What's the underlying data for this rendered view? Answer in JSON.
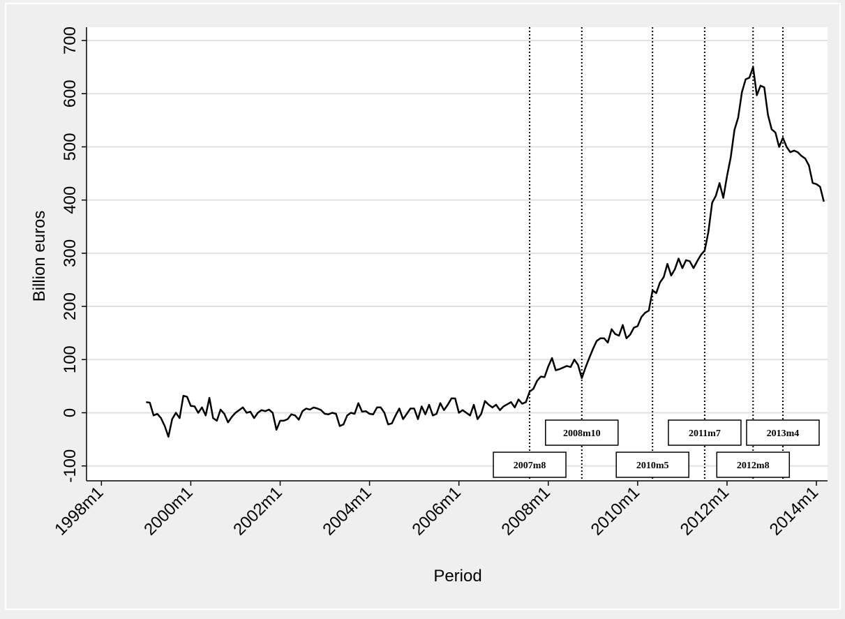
{
  "chart_data": {
    "type": "line",
    "xlabel": "Period",
    "ylabel": "Billion euros",
    "x_ticks": [
      "1998m1",
      "2000m1",
      "2002m1",
      "2004m1",
      "2006m1",
      "2008m1",
      "2010m1",
      "2012m1",
      "2014m1"
    ],
    "y_ticks": [
      "-100",
      "0",
      "100",
      "200",
      "300",
      "400",
      "500",
      "600",
      "700"
    ],
    "xlim": [
      "1997m9",
      "2014m4"
    ],
    "ylim": [
      -128,
      725
    ],
    "grid": "horizontal",
    "colors": {
      "line": "#000000",
      "grid": "#e1e1e1",
      "plot_bg": "#ffffff",
      "page_bg": "#efefef"
    },
    "series": [
      {
        "x": [
          "1999m1",
          "1999m2",
          "1999m3",
          "1999m4",
          "1999m5",
          "1999m6",
          "1999m7",
          "1999m8",
          "1999m9",
          "1999m10",
          "1999m11",
          "1999m12",
          "2000m1",
          "2000m2",
          "2000m3",
          "2000m4",
          "2000m5",
          "2000m6",
          "2000m7",
          "2000m8",
          "2000m9",
          "2000m10",
          "2000m11",
          "2000m12",
          "2001m1",
          "2001m2",
          "2001m3",
          "2001m4",
          "2001m5",
          "2001m6",
          "2001m7",
          "2001m8",
          "2001m9",
          "2001m10",
          "2001m11",
          "2001m12",
          "2002m1",
          "2002m2",
          "2002m3",
          "2002m4",
          "2002m5",
          "2002m6",
          "2002m7",
          "2002m8",
          "2002m9",
          "2002m10",
          "2002m11",
          "2002m12",
          "2003m1",
          "2003m2",
          "2003m3",
          "2003m4",
          "2003m5",
          "2003m6",
          "2003m7",
          "2003m8",
          "2003m9",
          "2003m10",
          "2003m11",
          "2003m12",
          "2004m1",
          "2004m2",
          "2004m3",
          "2004m4",
          "2004m5",
          "2004m6",
          "2004m7",
          "2004m8",
          "2004m9",
          "2004m10",
          "2004m11",
          "2004m12",
          "2005m1",
          "2005m2",
          "2005m3",
          "2005m4",
          "2005m5",
          "2005m6",
          "2005m7",
          "2005m8",
          "2005m9",
          "2005m10",
          "2005m11",
          "2005m12",
          "2006m1",
          "2006m2",
          "2006m3",
          "2006m4",
          "2006m5",
          "2006m6",
          "2006m7",
          "2006m8",
          "2006m9",
          "2006m10",
          "2006m11",
          "2006m12",
          "2007m1",
          "2007m2",
          "2007m3",
          "2007m4",
          "2007m5",
          "2007m6",
          "2007m7",
          "2007m8",
          "2007m9",
          "2007m10",
          "2007m11",
          "2007m12",
          "2008m1",
          "2008m2",
          "2008m3",
          "2008m4",
          "2008m5",
          "2008m6",
          "2008m7",
          "2008m8",
          "2008m9",
          "2008m10",
          "2008m11",
          "2008m12",
          "2009m1",
          "2009m2",
          "2009m3",
          "2009m4",
          "2009m5",
          "2009m6",
          "2009m7",
          "2009m8",
          "2009m9",
          "2009m10",
          "2009m11",
          "2009m12",
          "2010m1",
          "2010m2",
          "2010m3",
          "2010m4",
          "2010m5",
          "2010m6",
          "2010m7",
          "2010m8",
          "2010m9",
          "2010m10",
          "2010m11",
          "2010m12",
          "2011m1",
          "2011m2",
          "2011m3",
          "2011m4",
          "2011m5",
          "2011m6",
          "2011m7",
          "2011m8",
          "2011m9",
          "2011m10",
          "2011m11",
          "2011m12",
          "2012m1",
          "2012m2",
          "2012m3",
          "2012m4",
          "2012m5",
          "2012m6",
          "2012m7",
          "2012m8",
          "2012m9",
          "2012m10",
          "2012m11",
          "2012m12",
          "2013m1",
          "2013m2",
          "2013m3",
          "2013m4",
          "2013m5",
          "2013m6",
          "2013m7",
          "2013m8",
          "2013m9",
          "2013m10",
          "2013m11",
          "2013m12",
          "2014m1",
          "2014m2",
          "2014m3"
        ],
        "y": [
          20,
          19,
          -5,
          -2,
          -10,
          -25,
          -45,
          -12,
          0,
          -10,
          32,
          30,
          13,
          12,
          0,
          10,
          -5,
          28,
          -10,
          -15,
          6,
          -2,
          -18,
          -8,
          0,
          5,
          10,
          0,
          2,
          -10,
          0,
          5,
          3,
          6,
          0,
          -32,
          -15,
          -15,
          -12,
          -3,
          -5,
          -13,
          3,
          8,
          6,
          10,
          8,
          5,
          -2,
          -3,
          0,
          -2,
          -25,
          -22,
          -5,
          0,
          -2,
          18,
          2,
          3,
          -2,
          -3,
          10,
          10,
          0,
          -22,
          -20,
          -5,
          8,
          -12,
          -2,
          8,
          8,
          -12,
          12,
          -3,
          15,
          -5,
          -2,
          18,
          5,
          15,
          27,
          27,
          0,
          5,
          0,
          -5,
          15,
          -12,
          -2,
          22,
          15,
          10,
          15,
          5,
          12,
          16,
          20,
          10,
          25,
          17,
          20,
          40,
          45,
          60,
          68,
          67,
          87,
          103,
          80,
          82,
          85,
          88,
          86,
          100,
          90,
          65,
          85,
          103,
          120,
          135,
          140,
          140,
          132,
          157,
          148,
          145,
          165,
          140,
          147,
          160,
          163,
          180,
          188,
          192,
          230,
          225,
          245,
          255,
          280,
          258,
          270,
          290,
          272,
          287,
          285,
          272,
          285,
          297,
          305,
          340,
          395,
          408,
          432,
          404,
          445,
          480,
          532,
          555,
          603,
          627,
          630,
          650,
          597,
          615,
          612,
          560,
          533,
          527,
          500,
          517,
          500,
          490,
          493,
          490,
          483,
          478,
          465,
          432,
          430,
          425,
          397
        ]
      }
    ],
    "event_lines": [
      {
        "x": "2007m8",
        "label": "2007m8",
        "row": "lower"
      },
      {
        "x": "2008m10",
        "label": "2008m10",
        "row": "upper"
      },
      {
        "x": "2010m5",
        "label": "2010m5",
        "row": "lower"
      },
      {
        "x": "2011m7",
        "label": "2011m7",
        "row": "upper"
      },
      {
        "x": "2012m8",
        "label": "2012m8",
        "row": "lower"
      },
      {
        "x": "2013m4",
        "label": "2013m4",
        "row": "upper"
      }
    ]
  }
}
